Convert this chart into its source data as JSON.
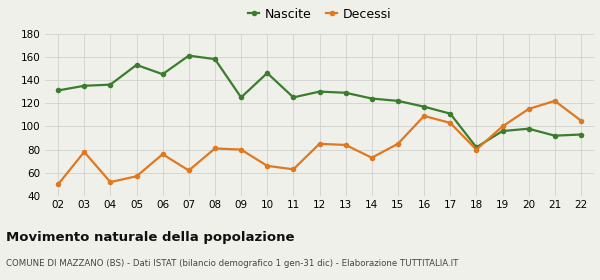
{
  "years": [
    "02",
    "03",
    "04",
    "05",
    "06",
    "07",
    "08",
    "09",
    "10",
    "11",
    "12",
    "13",
    "14",
    "15",
    "16",
    "17",
    "18",
    "19",
    "20",
    "21",
    "22"
  ],
  "nascite": [
    131,
    135,
    136,
    153,
    145,
    161,
    158,
    125,
    146,
    125,
    130,
    129,
    124,
    122,
    117,
    111,
    82,
    96,
    98,
    92,
    93
  ],
  "decessi": [
    50,
    78,
    52,
    57,
    76,
    62,
    81,
    80,
    66,
    63,
    85,
    84,
    73,
    85,
    109,
    103,
    80,
    100,
    115,
    122,
    105
  ],
  "nascite_color": "#3a7d2c",
  "decessi_color": "#e07820",
  "bg_color": "#f0f0eb",
  "grid_color": "#d0d0d0",
  "ylim": [
    40,
    180
  ],
  "yticks": [
    40,
    60,
    80,
    100,
    120,
    140,
    160,
    180
  ],
  "title": "Movimento naturale della popolazione",
  "subtitle": "COMUNE DI MAZZANO (BS) - Dati ISTAT (bilancio demografico 1 gen-31 dic) - Elaborazione TUTTITALIA.IT",
  "legend_nascite": "Nascite",
  "legend_decessi": "Decessi",
  "marker_size": 4,
  "line_width": 1.6
}
